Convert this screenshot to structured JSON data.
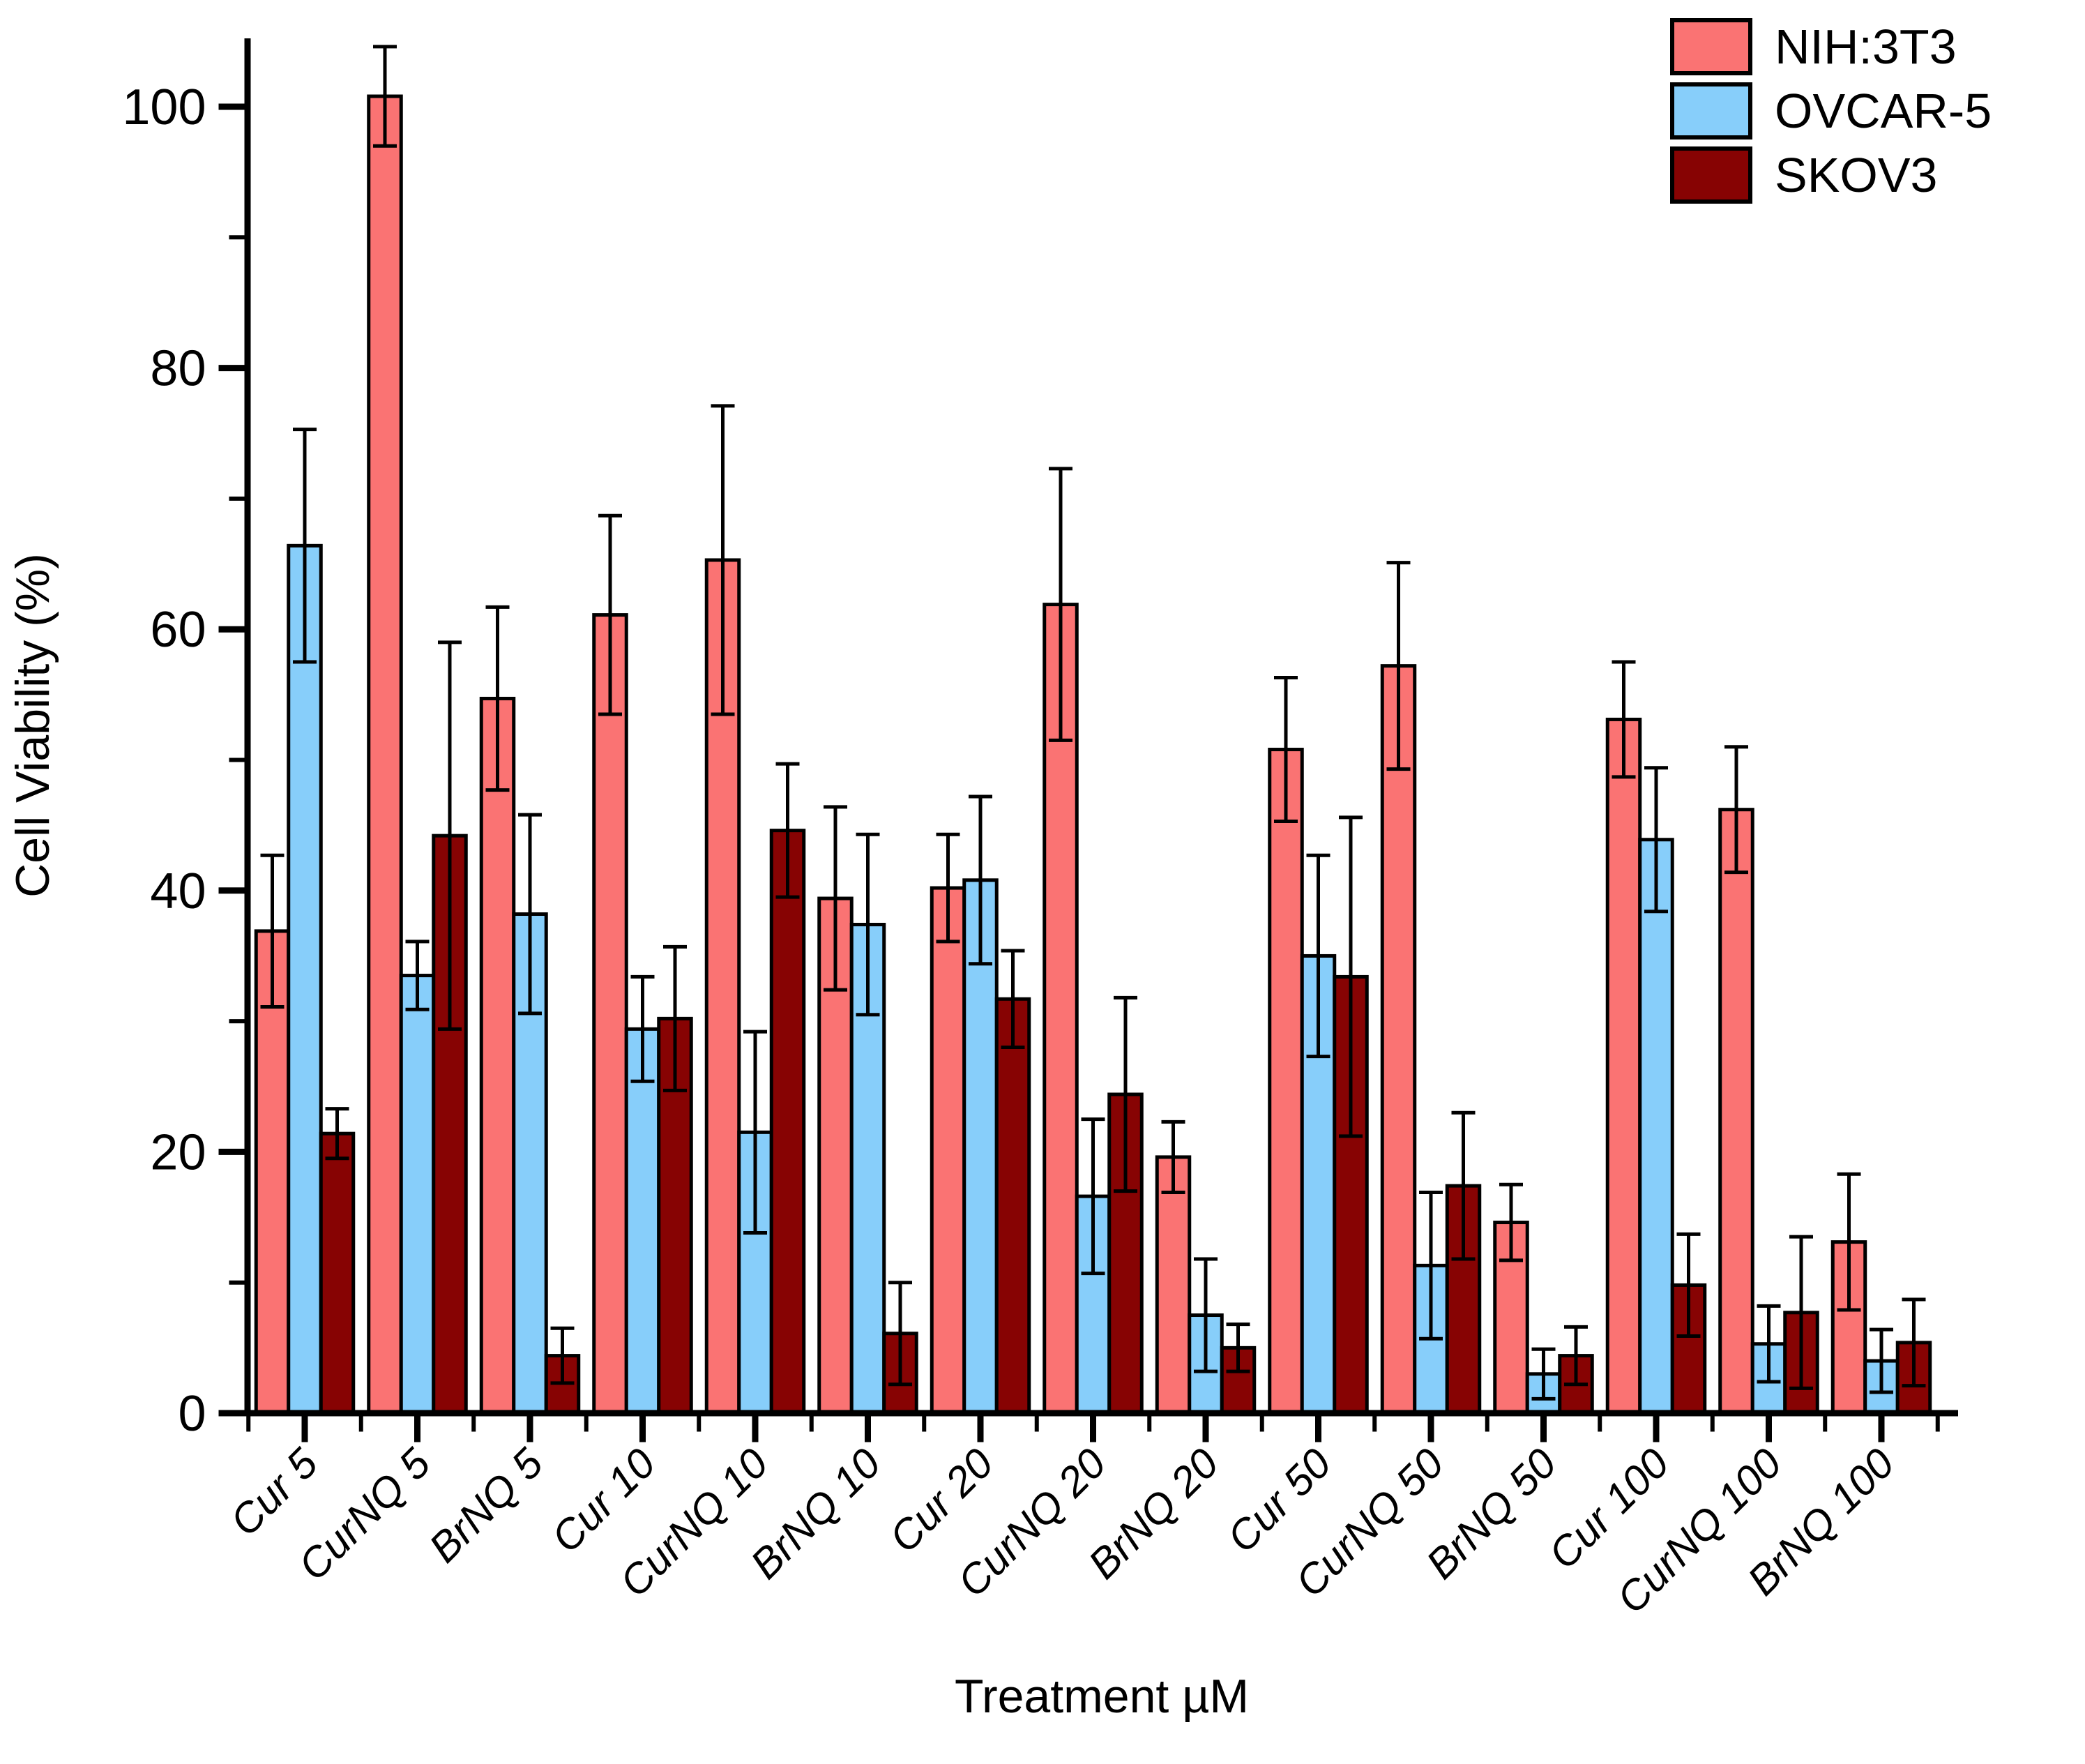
{
  "chart_data": {
    "type": "bar",
    "title": "",
    "xlabel": "Treatment µM",
    "ylabel": "Cell Viability (%)",
    "ylim": [
      0,
      105
    ],
    "yticks": [
      0,
      20,
      40,
      60,
      80,
      100
    ],
    "yminorticks": [
      10,
      30,
      50,
      70,
      90
    ],
    "grid": false,
    "legend_position": "top-right",
    "bar_outline_color": "#000000",
    "error_bar_color": "#000000",
    "categories": [
      "Cur 5",
      "CurNQ 5",
      "BrNQ 5",
      "Cur 10",
      "CurNQ 10",
      "BrNQ 10",
      "Cur 20",
      "CurNQ 20",
      "BrNQ 20",
      "Cur 50",
      "CurNQ 50",
      "BrNQ 50",
      "Cur 100",
      "CurNQ 100",
      "BrNQ 100"
    ],
    "series": [
      {
        "name": "NIH:3T3",
        "color": "#FA7373",
        "values": [
          36.9,
          100.8,
          54.7,
          61.1,
          65.3,
          39.4,
          40.2,
          61.9,
          19.6,
          50.8,
          57.2,
          14.6,
          53.1,
          46.2,
          13.1
        ],
        "errors": [
          5.8,
          3.8,
          7.0,
          7.6,
          11.8,
          7.0,
          4.1,
          10.4,
          2.7,
          5.5,
          7.9,
          2.9,
          4.4,
          4.8,
          5.2
        ]
      },
      {
        "name": "OVCAR-5",
        "color": "#87CEFA",
        "values": [
          66.4,
          33.5,
          38.2,
          29.4,
          21.5,
          37.4,
          40.8,
          16.6,
          7.5,
          35.0,
          11.3,
          3.0,
          43.9,
          5.3,
          4.0
        ],
        "errors": [
          8.9,
          2.6,
          7.6,
          4.0,
          7.7,
          6.9,
          6.4,
          5.9,
          4.3,
          7.7,
          5.6,
          1.9,
          5.5,
          2.9,
          2.4
        ]
      },
      {
        "name": "SKOV3",
        "color": "#870303",
        "values": [
          21.4,
          44.2,
          4.4,
          30.2,
          44.6,
          6.1,
          31.7,
          24.4,
          5.0,
          33.4,
          17.4,
          4.4,
          9.8,
          7.7,
          5.4
        ],
        "errors": [
          1.9,
          14.8,
          2.1,
          5.5,
          5.1,
          3.9,
          3.7,
          7.4,
          1.8,
          12.2,
          5.6,
          2.2,
          3.9,
          5.8,
          3.3
        ]
      }
    ]
  }
}
